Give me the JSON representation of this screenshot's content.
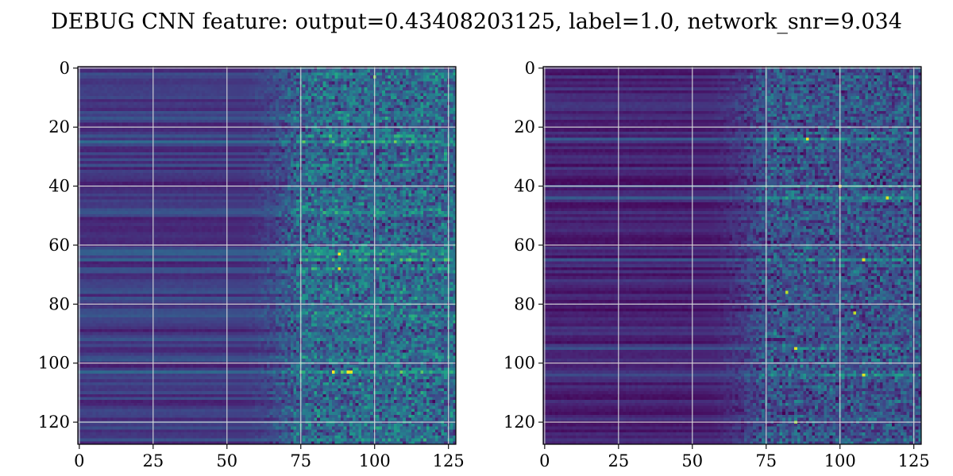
{
  "figure": {
    "title": "DEBUG CNN feature: output=0.43408203125, label=1.0, network_snr=9.034"
  },
  "chart_data": {
    "type": "heatmap",
    "title": "DEBUG CNN feature: output=0.43408203125, label=1.0, network_snr=9.034",
    "colormap": "viridis",
    "grid": true,
    "panels": [
      {
        "name": "",
        "shape": [
          128,
          128
        ],
        "x_ticks": [
          0,
          25,
          50,
          75,
          100,
          125
        ],
        "y_ticks": [
          0,
          20,
          40,
          60,
          80,
          100,
          120
        ],
        "xlim": [
          -0.5,
          127.5
        ],
        "ylim": [
          127.5,
          -0.5
        ],
        "pattern": {
          "left_region_end_col": 50,
          "transition_end_col": 75,
          "left_base": 0.18,
          "left_row_variation": 0.1,
          "noise_amplitude": 0.35,
          "bright_rows": [
            23,
            25,
            62,
            63,
            65,
            68,
            103
          ],
          "hotspots": [
            {
              "row": 63,
              "col": 88,
              "value": 1.0
            },
            {
              "row": 68,
              "col": 88,
              "value": 0.95
            },
            {
              "row": 103,
              "col": 86,
              "value": 1.0
            },
            {
              "row": 103,
              "col": 91,
              "value": 1.0
            },
            {
              "row": 103,
              "col": 92,
              "value": 0.95
            },
            {
              "row": 3,
              "col": 100,
              "value": 0.8
            },
            {
              "row": 65,
              "col": 112,
              "value": 0.75
            },
            {
              "row": 65,
              "col": 120,
              "value": 0.8
            }
          ]
        }
      },
      {
        "name": "",
        "shape": [
          128,
          128
        ],
        "x_ticks": [
          0,
          25,
          50,
          75,
          100,
          125
        ],
        "y_ticks": [
          0,
          20,
          40,
          60,
          80,
          100,
          120
        ],
        "xlim": [
          -0.5,
          127.5
        ],
        "ylim": [
          127.5,
          -0.5
        ],
        "pattern": {
          "left_region_end_col": 50,
          "transition_end_col": 75,
          "left_base": 0.1,
          "left_row_variation": 0.07,
          "noise_amplitude": 0.3,
          "bright_rows": [
            24,
            40,
            44,
            65,
            95,
            104
          ],
          "hotspots": [
            {
              "row": 24,
              "col": 89,
              "value": 1.0
            },
            {
              "row": 40,
              "col": 100,
              "value": 1.0
            },
            {
              "row": 44,
              "col": 116,
              "value": 0.95
            },
            {
              "row": 65,
              "col": 108,
              "value": 0.95
            },
            {
              "row": 95,
              "col": 85,
              "value": 0.95
            },
            {
              "row": 104,
              "col": 108,
              "value": 0.95
            },
            {
              "row": 83,
              "col": 105,
              "value": 0.9
            },
            {
              "row": 76,
              "col": 82,
              "value": 0.9
            },
            {
              "row": 120,
              "col": 85,
              "value": 0.85
            }
          ]
        }
      }
    ]
  },
  "colors": {
    "background": "#ffffff",
    "axis": "#000000",
    "grid": "#d9d9d9"
  }
}
